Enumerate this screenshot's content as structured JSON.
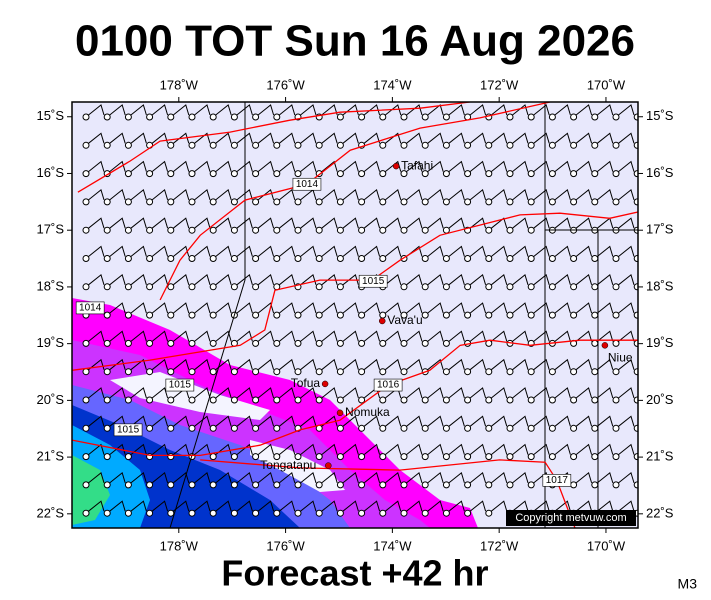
{
  "title": "0100 TOT Sun 16 Aug 2026",
  "footer": "Forecast +42 hr",
  "corner_label": "M3",
  "map": {
    "lonlim": [
      -180,
      -169.4
    ],
    "latlim": [
      -22.25,
      -14.74
    ],
    "lon_ticks": [
      {
        "value": -178,
        "label": "178˚W"
      },
      {
        "value": -176,
        "label": "176˚W"
      },
      {
        "value": -174,
        "label": "174˚W"
      },
      {
        "value": -172,
        "label": "172˚W"
      },
      {
        "value": -170,
        "label": "170˚W"
      }
    ],
    "lat_ticks": [
      {
        "value": -15,
        "label": "15˚S"
      },
      {
        "value": -16,
        "label": "16˚S"
      },
      {
        "value": -17,
        "label": "17˚S"
      },
      {
        "value": -18,
        "label": "18˚S"
      },
      {
        "value": -19,
        "label": "19˚S"
      },
      {
        "value": -20,
        "label": "20˚S"
      },
      {
        "value": -21,
        "label": "21˚S"
      },
      {
        "value": -22,
        "label": "22˚S"
      }
    ],
    "isobars": [
      {
        "points": [
          [
            -179.89,
            -16.33
          ],
          [
            -178.91,
            -15.78
          ],
          [
            -178.35,
            -15.43
          ],
          [
            -177.04,
            -15.27
          ],
          [
            -175.92,
            -15.06
          ],
          [
            -174.98,
            -14.92
          ],
          [
            -173.48,
            -14.85
          ],
          [
            -172.55,
            -14.74
          ]
        ]
      },
      {
        "points": [
          [
            -178.35,
            -18.23
          ],
          [
            -177.98,
            -17.53
          ],
          [
            -177.6,
            -17.09
          ],
          [
            -176.76,
            -16.47
          ],
          [
            -175.6,
            -16.19
          ],
          [
            -174.79,
            -15.59
          ],
          [
            -173.48,
            -15.2
          ],
          [
            -172.36,
            -15.02
          ],
          [
            -171.05,
            -14.74
          ]
        ]
      },
      {
        "points": [
          [
            -180,
            -19.47
          ],
          [
            -178.54,
            -19.29
          ],
          [
            -176.85,
            -19.03
          ],
          [
            -176.39,
            -18.76
          ],
          [
            -176.2,
            -18.06
          ],
          [
            -175.36,
            -17.88
          ],
          [
            -174.38,
            -17.88
          ],
          [
            -173.86,
            -17.53
          ],
          [
            -173.11,
            -17.09
          ],
          [
            -171.61,
            -16.73
          ],
          [
            -170.86,
            -16.7
          ],
          [
            -169.93,
            -16.79
          ],
          [
            -169.4,
            -16.68
          ]
        ]
      },
      {
        "points": [
          [
            -180,
            -20.7
          ],
          [
            -178.54,
            -20.97
          ],
          [
            -177.6,
            -20.97
          ],
          [
            -176.48,
            -20.79
          ],
          [
            -175.73,
            -20.52
          ],
          [
            -174.98,
            -20.35
          ],
          [
            -174.08,
            -19.73
          ],
          [
            -173.3,
            -19.47
          ],
          [
            -172.73,
            -19.03
          ],
          [
            -172.17,
            -18.94
          ],
          [
            -171.42,
            -19.03
          ],
          [
            -170.49,
            -18.94
          ],
          [
            -169.4,
            -18.94
          ]
        ]
      },
      {
        "points": [
          [
            -177.6,
            -21.05
          ],
          [
            -175.73,
            -21.19
          ],
          [
            -173.86,
            -21.23
          ],
          [
            -171.99,
            -21.05
          ],
          [
            -171.14,
            -21.09
          ],
          [
            -170.92,
            -21.41
          ],
          [
            -170.58,
            -22.25
          ]
        ]
      }
    ],
    "isobar_labels": [
      {
        "value": 1014,
        "lon": -175.6,
        "lat": -16.19
      },
      {
        "value": 1014,
        "lon": -179.66,
        "lat": -18.37
      },
      {
        "value": 1015,
        "lon": -174.36,
        "lat": -17.9
      },
      {
        "value": 1015,
        "lon": -177.98,
        "lat": -19.73
      },
      {
        "value": 1016,
        "lon": -174.08,
        "lat": -19.73
      },
      {
        "value": 1015,
        "lon": -178.95,
        "lat": -20.52
      },
      {
        "value": 1017,
        "lon": -170.92,
        "lat": -21.41
      }
    ],
    "places": [
      {
        "name": "Tafahi",
        "lon": -173.93,
        "lat": -15.87
      },
      {
        "name": "Vava'u",
        "lon": -174.19,
        "lat": -18.6
      },
      {
        "name": "Niue",
        "lon": -170.02,
        "lat": -19.03
      },
      {
        "name": "Tofua",
        "lon": -175.26,
        "lat": -19.71
      },
      {
        "name": "Nomuka",
        "lon": -174.98,
        "lat": -20.22
      },
      {
        "name": "Tongatapu",
        "lon": -175.2,
        "lat": -21.15
      }
    ],
    "copyright": "Copyright metvuw.com"
  }
}
